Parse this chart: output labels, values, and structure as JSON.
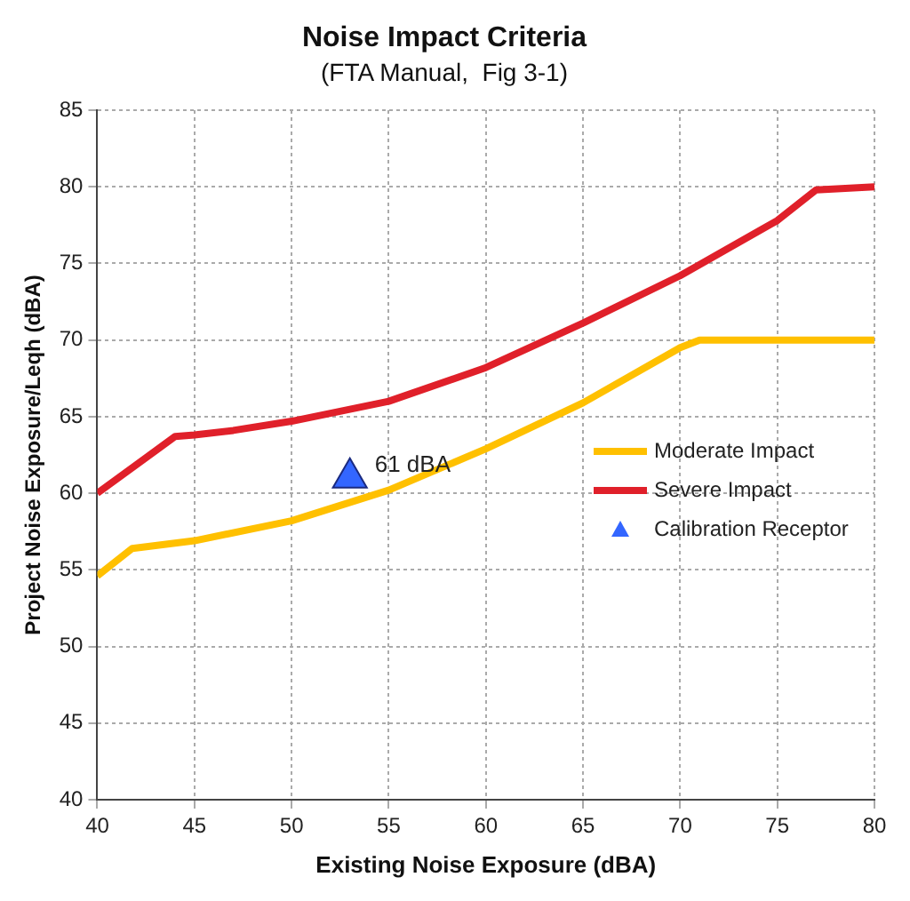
{
  "chart_data": {
    "type": "line",
    "title": "Noise Impact Criteria",
    "subtitle": "(FTA Manual,  Fig 3-1)",
    "xlabel": "Existing Noise Exposure (dBA)",
    "ylabel": "Project Noise Exposure/Leqh (dBA)",
    "series": [
      {
        "name": "Moderate Impact",
        "type": "line",
        "color": "#ffc000",
        "x": [
          40,
          41.8,
          45,
          50,
          55,
          60,
          65,
          70,
          71,
          80
        ],
        "values": [
          54.6,
          56.4,
          56.9,
          58.2,
          60.2,
          62.9,
          65.9,
          69.5,
          70,
          70
        ]
      },
      {
        "name": "Severe Impact",
        "type": "line",
        "color": "#e0202a",
        "x": [
          40,
          44,
          45,
          47,
          50,
          55,
          60,
          65,
          70,
          75,
          77,
          80
        ],
        "values": [
          60,
          63.7,
          63.8,
          64.1,
          64.7,
          66,
          68.2,
          71.1,
          74.2,
          77.8,
          79.8,
          80
        ]
      },
      {
        "name": "Calibration Receptor",
        "type": "scatter",
        "marker": "triangle",
        "color": "#3366ff",
        "x": [
          53
        ],
        "values": [
          61
        ]
      }
    ],
    "annotations": [
      {
        "text": "61 dBA",
        "x": 53,
        "y": 61
      }
    ],
    "xlim": [
      40,
      80
    ],
    "xticks": [
      40,
      45,
      50,
      55,
      60,
      65,
      70,
      75,
      80
    ],
    "ylim": [
      40,
      85
    ],
    "yticks": [
      40,
      45,
      50,
      55,
      60,
      65,
      70,
      75,
      80,
      85
    ],
    "grid": true,
    "legend": "right",
    "line_style": "solid"
  }
}
